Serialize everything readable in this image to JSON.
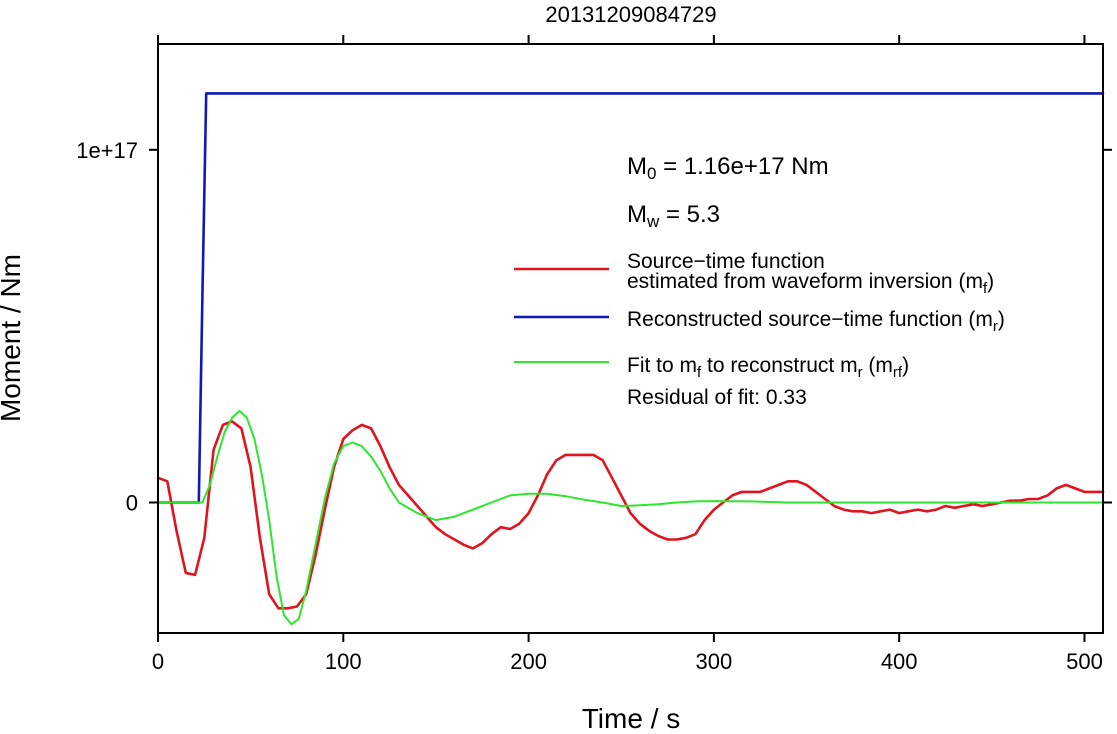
{
  "chart_data": {
    "type": "line",
    "title": "20131209084729",
    "xlabel": "Time / s",
    "ylabel": "Moment / Nm",
    "xlim": [
      0,
      510
    ],
    "ylim": [
      -3.7e+16,
      1.3e+17
    ],
    "x_ticks": [
      0,
      100,
      200,
      300,
      400,
      500
    ],
    "x_tick_labels": [
      "0",
      "100",
      "200",
      "300",
      "400",
      "500"
    ],
    "y_ticks": [
      0,
      1e+17
    ],
    "y_tick_labels": [
      "0",
      "1e+17"
    ],
    "grid": false,
    "legend_position": "right",
    "annotations": {
      "m0": {
        "prefix": "M",
        "sub": "0",
        "text": " = 1.16e+17 Nm"
      },
      "mw": {
        "prefix": "M",
        "sub": "w",
        "text": " = 5.3"
      },
      "residual": "Residual of fit: 0.33"
    },
    "series": [
      {
        "color": "#e0141e",
        "legend_parts": [
          [
            "Source−time function",
            "",
            ""
          ],
          [
            "estimated from waveform inversion (m",
            "f",
            ")"
          ]
        ],
        "x": [
          0,
          5,
          10,
          15,
          20,
          25,
          30,
          35,
          40,
          45,
          50,
          55,
          60,
          65,
          70,
          75,
          80,
          85,
          90,
          95,
          100,
          105,
          110,
          115,
          120,
          125,
          130,
          135,
          140,
          145,
          150,
          155,
          160,
          165,
          170,
          175,
          180,
          185,
          190,
          195,
          200,
          205,
          210,
          215,
          220,
          225,
          230,
          235,
          240,
          245,
          250,
          255,
          260,
          265,
          270,
          275,
          280,
          285,
          290,
          295,
          300,
          305,
          310,
          315,
          320,
          325,
          330,
          335,
          340,
          345,
          350,
          355,
          360,
          365,
          370,
          375,
          380,
          385,
          390,
          395,
          400,
          405,
          410,
          415,
          420,
          425,
          430,
          435,
          440,
          445,
          450,
          455,
          460,
          465,
          470,
          475,
          480,
          485,
          490,
          495,
          500,
          505,
          510
        ],
        "y": [
          7000000000000000.0,
          6000000000000000.0,
          -8000000000000000.0,
          -2e+16,
          -2.05e+16,
          -1e+16,
          1.5e+16,
          2.2e+16,
          2.3e+16,
          2.1e+16,
          1e+16,
          -1e+16,
          -2.6e+16,
          -3e+16,
          -3e+16,
          -2.95e+16,
          -2.6e+16,
          -1.5e+16,
          -2000000000000000.0,
          1e+16,
          1.8e+16,
          2.05e+16,
          2.2e+16,
          2.1e+16,
          1.6e+16,
          1e+16,
          5000000000000000.0,
          2000000000000000.0,
          -1000000000000000.0,
          -4000000000000000.0,
          -7000000000000000.0,
          -9000000000000000.0,
          -1.05e+16,
          -1.2e+16,
          -1.3e+16,
          -1.15e+16,
          -9000000000000000.0,
          -7000000000000000.0,
          -7500000000000000.0,
          -6000000000000000.0,
          -3000000000000000.0,
          2000000000000000.0,
          8000000000000000.0,
          1.2e+16,
          1.35e+16,
          1.35e+16,
          1.35e+16,
          1.35e+16,
          1.2e+16,
          7000000000000000.0,
          2000000000000000.0,
          -3000000000000000.0,
          -6000000000000000.0,
          -8000000000000000.0,
          -9500000000000000.0,
          -1.05e+16,
          -1.05e+16,
          -1e+16,
          -9000000000000000.0,
          -5000000000000000.0,
          -2000000000000000.0,
          0,
          2000000000000000.0,
          3000000000000000.0,
          3000000000000000.0,
          3000000000000000.0,
          4000000000000000.0,
          5000000000000000.0,
          6000000000000000.0,
          6000000000000000.0,
          5000000000000000.0,
          3000000000000000.0,
          1000000000000000.0,
          -1000000000000000.0,
          -2000000000000000.0,
          -2500000000000000.0,
          -2500000000000000.0,
          -3000000000000000.0,
          -2500000000000000.0,
          -2000000000000000.0,
          -3000000000000000.0,
          -2500000000000000.0,
          -2000000000000000.0,
          -2500000000000000.0,
          -2000000000000000.0,
          -1000000000000000.0,
          -1500000000000000.0,
          -1000000000000000.0,
          -500000000000000.0,
          -1000000000000000.0,
          -500000000000000.0,
          0,
          500000000000000.0,
          500000000000000.0,
          1000000000000000.0,
          1000000000000000.0,
          2000000000000000.0,
          4000000000000000.0,
          5000000000000000.0,
          4000000000000000.0,
          3000000000000000.0,
          3000000000000000.0,
          3000000000000000.0
        ]
      },
      {
        "color": "#1019b4",
        "legend_parts": [
          [
            "Reconstructed source−time function (m",
            "r",
            ")"
          ]
        ],
        "x": [
          0,
          22,
          24,
          26,
          510
        ],
        "y": [
          0,
          0,
          6e+16,
          1.16e+17,
          1.16e+17
        ]
      },
      {
        "color": "#2ee62e",
        "legend_parts": [
          [
            "Fit to m",
            "f",
            " to reconstruct m",
            "r",
            " (m",
            "rf",
            ")"
          ]
        ],
        "x": [
          0,
          20,
          24,
          28,
          32,
          36,
          40,
          44,
          48,
          52,
          56,
          60,
          64,
          68,
          72,
          76,
          80,
          85,
          90,
          95,
          100,
          105,
          110,
          115,
          120,
          125,
          130,
          140,
          150,
          160,
          170,
          180,
          190,
          200,
          210,
          220,
          230,
          240,
          250,
          260,
          270,
          280,
          290,
          300,
          320,
          340,
          360,
          380,
          400,
          420,
          440,
          460,
          480,
          500,
          510
        ],
        "y": [
          0,
          0,
          0,
          5000000000000000.0,
          1.3e+16,
          2e+16,
          2.4e+16,
          2.6e+16,
          2.4e+16,
          1.8e+16,
          8000000000000000.0,
          -5000000000000000.0,
          -2.1e+16,
          -3.2e+16,
          -3.45e+16,
          -3.3e+16,
          -2.5e+16,
          -1.2e+16,
          1000000000000000.0,
          1.1e+16,
          1.6e+16,
          1.7e+16,
          1.6e+16,
          1.3e+16,
          9000000000000000.0,
          4000000000000000.0,
          0,
          -3000000000000000.0,
          -5000000000000000.0,
          -4000000000000000.0,
          -2000000000000000.0,
          0,
          2000000000000000.0,
          2500000000000000.0,
          2500000000000000.0,
          1800000000000000.0,
          800000000000000.0,
          0,
          -1000000000000000.0,
          -800000000000000.0,
          -500000000000000.0,
          0,
          300000000000000.0,
          400000000000000.0,
          300000000000000.0,
          0,
          0,
          0,
          0,
          0,
          0,
          0,
          0,
          0,
          0
        ]
      }
    ]
  }
}
